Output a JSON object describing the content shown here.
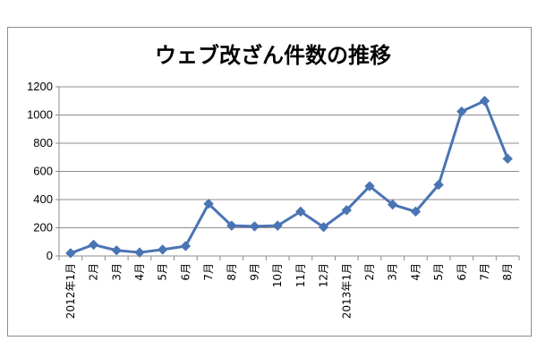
{
  "chart_data": {
    "type": "line",
    "title": "ウェブ改ざん件数の推移",
    "xlabel": "",
    "ylabel": "",
    "ylim": [
      0,
      1200
    ],
    "yticks": [
      0,
      200,
      400,
      600,
      800,
      1000,
      1200
    ],
    "grid": true,
    "legend": "none",
    "categories": [
      "2012年1月",
      "2月",
      "3月",
      "4月",
      "5月",
      "6月",
      "7月",
      "8月",
      "9月",
      "10月",
      "11月",
      "12月",
      "2013年1月",
      "2月",
      "3月",
      "4月",
      "5月",
      "6月",
      "7月",
      "8月"
    ],
    "series": [
      {
        "color": "#4a74b4",
        "values": [
          20,
          80,
          40,
          25,
          45,
          70,
          370,
          215,
          210,
          215,
          315,
          205,
          325,
          495,
          365,
          315,
          505,
          1025,
          1100,
          690
        ]
      }
    ]
  }
}
